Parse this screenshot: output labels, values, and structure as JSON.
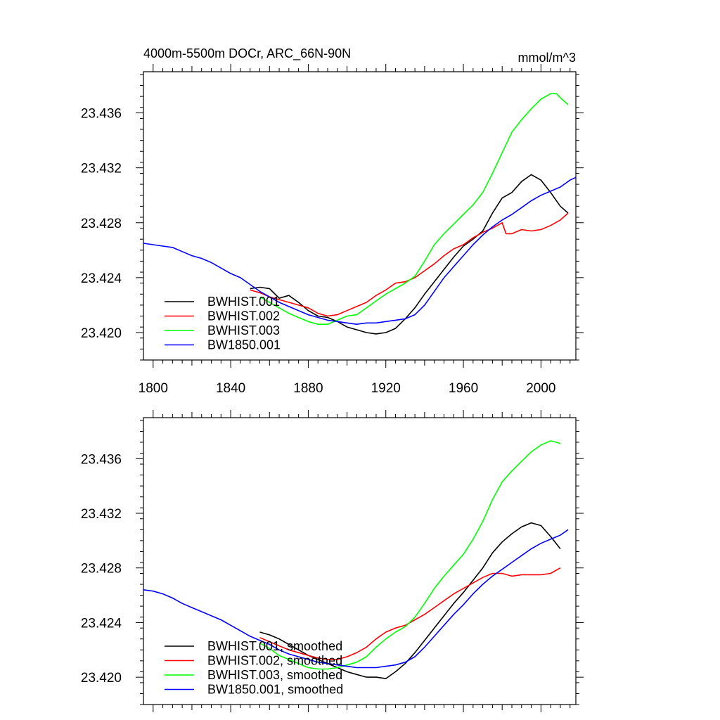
{
  "chart_data": [
    {
      "type": "line",
      "title": "4000m-5500m DOCr, ARC_66N-90N",
      "units": "mmol/m^3",
      "xlim": [
        1795,
        2018
      ],
      "ylim": [
        23.418,
        23.439
      ],
      "x_ticks": [
        1800,
        1840,
        1880,
        1920,
        1960,
        2000
      ],
      "y_ticks": [
        23.42,
        23.424,
        23.428,
        23.432,
        23.436
      ],
      "y_tick_labels": [
        "23.420",
        "23.424",
        "23.428",
        "23.432",
        "23.436"
      ],
      "legend_position": "bottom-left",
      "series": [
        {
          "name": "BWHIST.001",
          "color": "#000000",
          "x": [
            1850,
            1855,
            1860,
            1865,
            1870,
            1875,
            1880,
            1885,
            1890,
            1895,
            1900,
            1905,
            1910,
            1915,
            1920,
            1925,
            1930,
            1935,
            1940,
            1945,
            1950,
            1955,
            1960,
            1965,
            1970,
            1975,
            1980,
            1985,
            1990,
            1995,
            2000,
            2005,
            2010,
            2014
          ],
          "y": [
            23.4232,
            23.4233,
            23.4232,
            23.4225,
            23.4227,
            23.4222,
            23.4216,
            23.4212,
            23.4211,
            23.4208,
            23.4204,
            23.4202,
            23.42,
            23.4199,
            23.42,
            23.4203,
            23.421,
            23.4218,
            23.4228,
            23.4237,
            23.4246,
            23.4255,
            23.4263,
            23.4268,
            23.4274,
            23.4287,
            23.4298,
            23.4302,
            23.431,
            23.4315,
            23.4311,
            23.4302,
            23.4292,
            23.4287
          ]
        },
        {
          "name": "BWHIST.002",
          "color": "#ff0000",
          "x": [
            1850,
            1855,
            1860,
            1865,
            1870,
            1875,
            1880,
            1885,
            1890,
            1895,
            1900,
            1905,
            1910,
            1915,
            1920,
            1925,
            1930,
            1935,
            1940,
            1945,
            1950,
            1955,
            1960,
            1965,
            1970,
            1975,
            1980,
            1982,
            1985,
            1990,
            1995,
            2000,
            2005,
            2010,
            2014
          ],
          "y": [
            23.4231,
            23.4229,
            23.4226,
            23.4224,
            23.4222,
            23.422,
            23.4218,
            23.4214,
            23.4212,
            23.4213,
            23.4216,
            23.4219,
            23.4222,
            23.4227,
            23.4231,
            23.4236,
            23.4237,
            23.424,
            23.4245,
            23.425,
            23.4256,
            23.4261,
            23.4264,
            23.4269,
            23.4273,
            23.4276,
            23.428,
            23.4272,
            23.4272,
            23.4275,
            23.4274,
            23.4275,
            23.4278,
            23.4282,
            23.4287
          ]
        },
        {
          "name": "BWHIST.003",
          "color": "#00ff00",
          "x": [
            1855,
            1860,
            1865,
            1870,
            1875,
            1880,
            1885,
            1890,
            1895,
            1900,
            1905,
            1910,
            1915,
            1920,
            1925,
            1930,
            1935,
            1940,
            1945,
            1950,
            1955,
            1960,
            1965,
            1970,
            1975,
            1980,
            1985,
            1990,
            1995,
            2000,
            2005,
            2008,
            2010,
            2014
          ],
          "y": [
            23.4226,
            23.4222,
            23.4218,
            23.4214,
            23.4211,
            23.4208,
            23.4206,
            23.4206,
            23.4209,
            23.4212,
            23.4213,
            23.4218,
            23.4223,
            23.4228,
            23.4232,
            23.4236,
            23.4241,
            23.4252,
            23.4264,
            23.4272,
            23.4279,
            23.4286,
            23.4293,
            23.4302,
            23.4316,
            23.4331,
            23.4346,
            23.4355,
            23.4363,
            23.437,
            23.4374,
            23.4374,
            23.4371,
            23.4366
          ]
        },
        {
          "name": "BW1850.001",
          "color": "#0000ff",
          "x": [
            1795,
            1800,
            1805,
            1810,
            1815,
            1820,
            1825,
            1830,
            1835,
            1840,
            1845,
            1850,
            1855,
            1860,
            1865,
            1870,
            1875,
            1880,
            1885,
            1890,
            1895,
            1900,
            1905,
            1910,
            1915,
            1920,
            1925,
            1930,
            1935,
            1940,
            1945,
            1950,
            1955,
            1960,
            1965,
            1970,
            1975,
            1980,
            1985,
            1990,
            1995,
            2000,
            2005,
            2010,
            2015,
            2018
          ],
          "y": [
            23.4265,
            23.4264,
            23.4263,
            23.4262,
            23.4259,
            23.4256,
            23.4254,
            23.4251,
            23.4247,
            23.4243,
            23.424,
            23.4235,
            23.423,
            23.4226,
            23.4222,
            23.4219,
            23.4216,
            23.4213,
            23.4211,
            23.4209,
            23.4208,
            23.4207,
            23.4206,
            23.4207,
            23.4207,
            23.4208,
            23.4209,
            23.421,
            23.4213,
            23.422,
            23.423,
            23.424,
            23.4248,
            23.4256,
            23.4264,
            23.4271,
            23.4277,
            23.4282,
            23.4286,
            23.4291,
            23.4296,
            23.43,
            23.4303,
            23.4306,
            23.4311,
            23.4313
          ]
        }
      ]
    },
    {
      "type": "line",
      "xlim": [
        1795,
        2018
      ],
      "ylim": [
        23.418,
        23.439
      ],
      "y_ticks": [
        23.42,
        23.424,
        23.428,
        23.432,
        23.436
      ],
      "y_tick_labels": [
        "23.420",
        "23.424",
        "23.428",
        "23.432",
        "23.436"
      ],
      "legend_position": "bottom-left",
      "series": [
        {
          "name": "BWHIST.001, smoothed",
          "color": "#000000",
          "x": [
            1855,
            1860,
            1865,
            1870,
            1875,
            1880,
            1885,
            1890,
            1895,
            1900,
            1905,
            1910,
            1915,
            1920,
            1925,
            1930,
            1935,
            1940,
            1945,
            1950,
            1955,
            1960,
            1965,
            1970,
            1975,
            1980,
            1985,
            1990,
            1995,
            2000,
            2005,
            2010
          ],
          "y": [
            23.4233,
            23.4231,
            23.4228,
            23.4224,
            23.422,
            23.4216,
            23.4213,
            23.421,
            23.4207,
            23.4204,
            23.4202,
            23.42,
            23.42,
            23.4199,
            23.4204,
            23.421,
            23.4218,
            23.4227,
            23.4236,
            23.4245,
            23.4254,
            23.4262,
            23.4271,
            23.428,
            23.4291,
            23.4299,
            23.4305,
            23.431,
            23.4313,
            23.4311,
            23.4303,
            23.4294
          ]
        },
        {
          "name": "BWHIST.002, smoothed",
          "color": "#ff0000",
          "x": [
            1855,
            1860,
            1865,
            1870,
            1875,
            1880,
            1885,
            1890,
            1895,
            1900,
            1905,
            1910,
            1915,
            1920,
            1925,
            1930,
            1935,
            1940,
            1945,
            1950,
            1955,
            1960,
            1965,
            1970,
            1975,
            1980,
            1985,
            1990,
            1995,
            2000,
            2005,
            2010
          ],
          "y": [
            23.4229,
            23.4226,
            23.4223,
            23.422,
            23.4218,
            23.4216,
            23.4214,
            23.4213,
            23.4213,
            23.4215,
            23.4218,
            23.4222,
            23.4228,
            23.4233,
            23.4236,
            23.4238,
            23.4242,
            23.4246,
            23.4251,
            23.4256,
            23.4261,
            23.4265,
            23.4269,
            23.4273,
            23.4276,
            23.4276,
            23.4274,
            23.4275,
            23.4275,
            23.4275,
            23.4276,
            23.428
          ]
        },
        {
          "name": "BWHIST.003, smoothed",
          "color": "#00ff00",
          "x": [
            1855,
            1860,
            1865,
            1870,
            1875,
            1880,
            1885,
            1890,
            1895,
            1900,
            1905,
            1910,
            1915,
            1920,
            1925,
            1930,
            1935,
            1940,
            1945,
            1950,
            1955,
            1960,
            1965,
            1970,
            1975,
            1980,
            1985,
            1990,
            1995,
            2000,
            2005,
            2008,
            2010
          ],
          "y": [
            23.4225,
            23.4221,
            23.4216,
            23.4213,
            23.421,
            23.4207,
            23.4206,
            23.4206,
            23.4207,
            23.4209,
            23.4211,
            23.4215,
            23.4222,
            23.4228,
            23.4233,
            23.4237,
            23.4244,
            23.4254,
            23.4265,
            23.4274,
            23.4282,
            23.429,
            23.4301,
            23.4314,
            23.433,
            23.4343,
            23.4351,
            23.4358,
            23.4365,
            23.437,
            23.4373,
            23.4372,
            23.4371
          ]
        },
        {
          "name": "BW1850.001, smoothed",
          "color": "#0000ff",
          "x": [
            1795,
            1800,
            1805,
            1810,
            1815,
            1820,
            1825,
            1830,
            1835,
            1840,
            1845,
            1850,
            1855,
            1860,
            1865,
            1870,
            1875,
            1880,
            1885,
            1890,
            1895,
            1900,
            1905,
            1910,
            1915,
            1920,
            1925,
            1930,
            1935,
            1940,
            1945,
            1950,
            1955,
            1960,
            1965,
            1970,
            1975,
            1980,
            1985,
            1990,
            1995,
            2000,
            2005,
            2010,
            2014
          ],
          "y": [
            23.4264,
            23.4263,
            23.4261,
            23.4258,
            23.4254,
            23.4251,
            23.4248,
            23.4245,
            23.4242,
            23.4238,
            23.4234,
            23.423,
            23.4227,
            23.4224,
            23.422,
            23.4217,
            23.4215,
            23.4213,
            23.4211,
            23.421,
            23.4209,
            23.4208,
            23.4207,
            23.4207,
            23.4207,
            23.4208,
            23.4209,
            23.4211,
            23.4215,
            23.4222,
            23.423,
            23.4238,
            23.4246,
            23.4253,
            23.4261,
            23.4268,
            23.4274,
            23.4279,
            23.4284,
            23.4289,
            23.4294,
            23.4298,
            23.4301,
            23.4304,
            23.4308
          ]
        }
      ]
    }
  ]
}
